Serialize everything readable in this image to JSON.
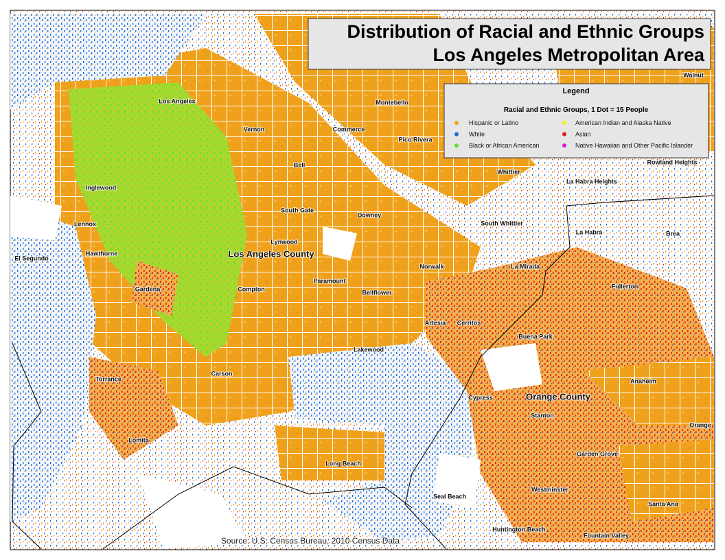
{
  "title": [
    "Distribution of Racial and Ethnic Groups",
    "Los Angeles Metropolitan Area"
  ],
  "legend": {
    "title": "Legend",
    "subtitle": "Racial and Ethnic Groups, 1 Dot = 15 People",
    "items": [
      {
        "label": "Hispanic or Latino",
        "color": "#f5a21a"
      },
      {
        "label": "White",
        "color": "#1f6fd8"
      },
      {
        "label": "Black or African American",
        "color": "#5fe02a"
      },
      {
        "label": "American Indian and Alaska Native",
        "color": "#f5f01a"
      },
      {
        "label": "Asian",
        "color": "#e0201a"
      },
      {
        "label": "Native Hawaiian and Other Pacific Islander",
        "color": "#d81ad0"
      }
    ]
  },
  "places": [
    "Los Angeles",
    "Montebello",
    "Vernon",
    "Commerce",
    "Pico Rivera",
    "Bell",
    "Whittier",
    "Rowland Heights",
    "Walnut",
    "La Habra Heights",
    "Inglewood",
    "South Gate",
    "Downey",
    "South Whittier",
    "La Habra",
    "Brea",
    "Lennox",
    "Lynwood",
    "Los Angeles County",
    "El Segundo",
    "Hawthorne",
    "Norwalk",
    "La Mirada",
    "Paramount",
    "Fullerton",
    "Gardena",
    "Compton",
    "Bellflower",
    "Artesia",
    "Cerritos",
    "Buena Park",
    "Lakewood",
    "Carson",
    "Torrance",
    "Anaheim",
    "Cypress",
    "Orange County",
    "Stanton",
    "Orange",
    "Lomita",
    "Garden Grove",
    "Long Beach",
    "Westminster",
    "Seal Beach",
    "Santa Ana",
    "Huntington Beach",
    "Fountain Valley"
  ],
  "source": "Source: U.S. Census Bureau, 2010 Census Data"
}
